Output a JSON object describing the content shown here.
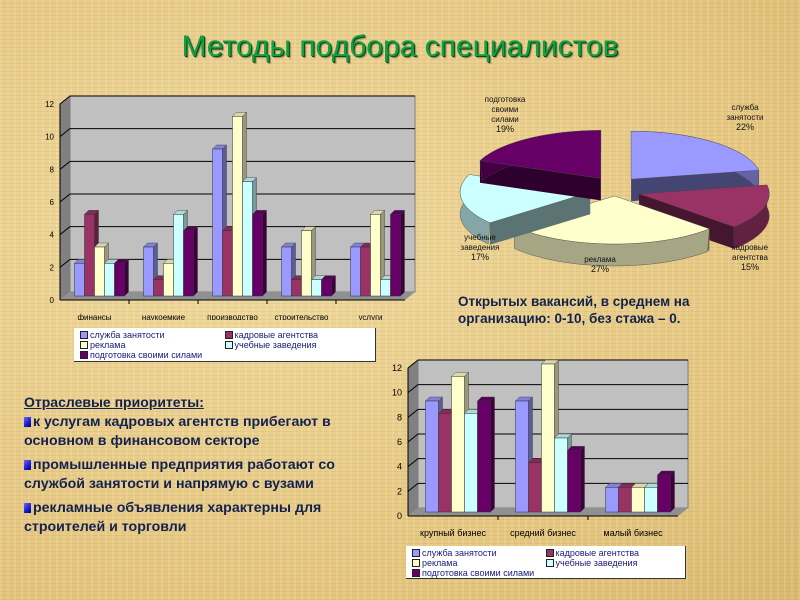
{
  "title": "Методы подбора специалистов",
  "note": "Открытых вакансий, в среднем на организацию: 0-10, без стажа – 0.",
  "priorities": {
    "heading": "Отраслевые приоритеты",
    "heading_suffix": ":",
    "bullets": [
      "к услугам кадровых агентств прибегают в основном в финансовом секторе",
      "промышленные предприятия работают со службой занятости и напрямую с вузами",
      "рекламные объявления характерны для строителей и торговли"
    ]
  },
  "series_colors": {
    "служба занятости": "#9999ff",
    "кадровые агентства": "#993366",
    "реклама": "#ffffcc",
    "учебные заведения": "#ccffff",
    "подготовка своими силами": "#660066"
  },
  "legend": {
    "items": [
      "служба занятости",
      "кадровые агентства",
      "реклама",
      "учебные заведения",
      "подготовка своими силами"
    ]
  },
  "chart_data": [
    {
      "type": "bar",
      "title": "",
      "categories": [
        "финансы",
        "наукоемкие",
        "производство",
        "строительство",
        "услуги"
      ],
      "series": [
        {
          "name": "служба занятости",
          "values": [
            2,
            3,
            9,
            3,
            3
          ]
        },
        {
          "name": "кадровые агентства",
          "values": [
            5,
            1,
            4,
            1,
            3
          ]
        },
        {
          "name": "реклама",
          "values": [
            3,
            2,
            11,
            4,
            5
          ]
        },
        {
          "name": "учебные заведения",
          "values": [
            2,
            5,
            7,
            1,
            1
          ]
        },
        {
          "name": "подготовка своими силами",
          "values": [
            2,
            4,
            5,
            1,
            5
          ]
        }
      ],
      "yticks": [
        0,
        2,
        4,
        6,
        8,
        10,
        12
      ],
      "ylim": [
        0,
        12
      ],
      "grid": true,
      "legend_position": "bottom"
    },
    {
      "type": "pie",
      "title": "",
      "labels": [
        "служба занятости",
        "кадровые агентства",
        "реклама",
        "учебные заведения",
        "подготовка своими силами"
      ],
      "display_labels": [
        [
          "служба",
          "занятости",
          "22%"
        ],
        [
          "кадровые",
          "агентства",
          "15%"
        ],
        [
          "реклама",
          "27%"
        ],
        [
          "учебные",
          "заведения",
          "17%"
        ],
        [
          "подготовка",
          "своими",
          "силами",
          "19%"
        ]
      ],
      "values": [
        22,
        15,
        27,
        17,
        19
      ],
      "style": "3d-exploded"
    },
    {
      "type": "bar",
      "title": "",
      "categories": [
        "крупный бизнес",
        "средний бизнес",
        "малый бизнес"
      ],
      "series": [
        {
          "name": "служба занятости",
          "values": [
            9,
            9,
            2
          ]
        },
        {
          "name": "кадровые агентства",
          "values": [
            8,
            4,
            2
          ]
        },
        {
          "name": "реклама",
          "values": [
            11,
            12,
            2
          ]
        },
        {
          "name": "учебные заведения",
          "values": [
            8,
            6,
            2
          ]
        },
        {
          "name": "подготовка своими силами",
          "values": [
            9,
            5,
            3
          ]
        }
      ],
      "yticks": [
        0,
        2,
        4,
        6,
        8,
        10,
        12
      ],
      "ylim": [
        0,
        12
      ],
      "grid": true,
      "legend_position": "bottom"
    }
  ]
}
